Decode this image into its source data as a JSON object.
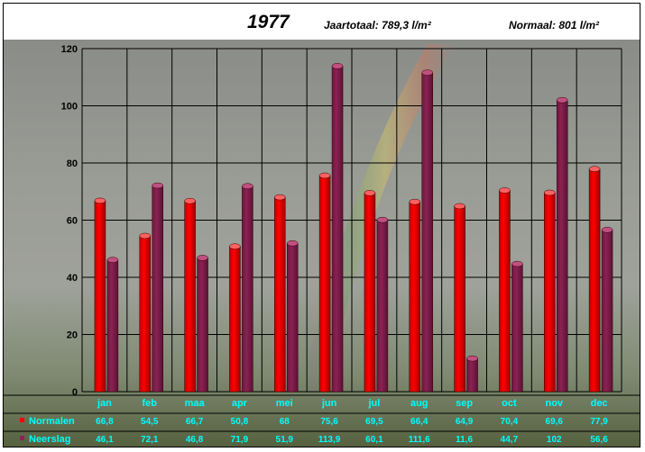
{
  "header": {
    "year": "1977",
    "annual_total": "Jaartotaal: 789,3 l/m²",
    "normal": "Normaal: 801 l/m²"
  },
  "colors": {
    "normalen": "#ff0000",
    "neerslag": "#8b2252",
    "text_cyan": "#00ffff"
  },
  "chart_data": {
    "type": "bar",
    "title": "1977",
    "categories": [
      "jan",
      "feb",
      "maa",
      "apr",
      "mei",
      "jun",
      "jul",
      "aug",
      "sep",
      "oct",
      "nov",
      "dec"
    ],
    "series": [
      {
        "name": "Normalen",
        "values": [
          66.8,
          54.5,
          66.7,
          50.8,
          68,
          75.6,
          69.5,
          66.4,
          64.9,
          70.4,
          69.6,
          77.9
        ],
        "labels": [
          "66,8",
          "54,5",
          "66,7",
          "50,8",
          "68",
          "75,6",
          "69,5",
          "66,4",
          "64,9",
          "70,4",
          "69,6",
          "77,9"
        ]
      },
      {
        "name": "Neerslag",
        "values": [
          46.1,
          72.1,
          46.8,
          71.9,
          51.9,
          113.9,
          60.1,
          111.6,
          11.6,
          44.7,
          102,
          56.6
        ],
        "labels": [
          "46,1",
          "72,1",
          "46,8",
          "71,9",
          "51,9",
          "113,9",
          "60,1",
          "111,6",
          "11,6",
          "44,7",
          "102",
          "56,6"
        ]
      }
    ],
    "ylim": [
      0,
      120
    ],
    "yticks": [
      0,
      20,
      40,
      60,
      80,
      100,
      120
    ],
    "grid": true,
    "legend": "data table below chart"
  }
}
